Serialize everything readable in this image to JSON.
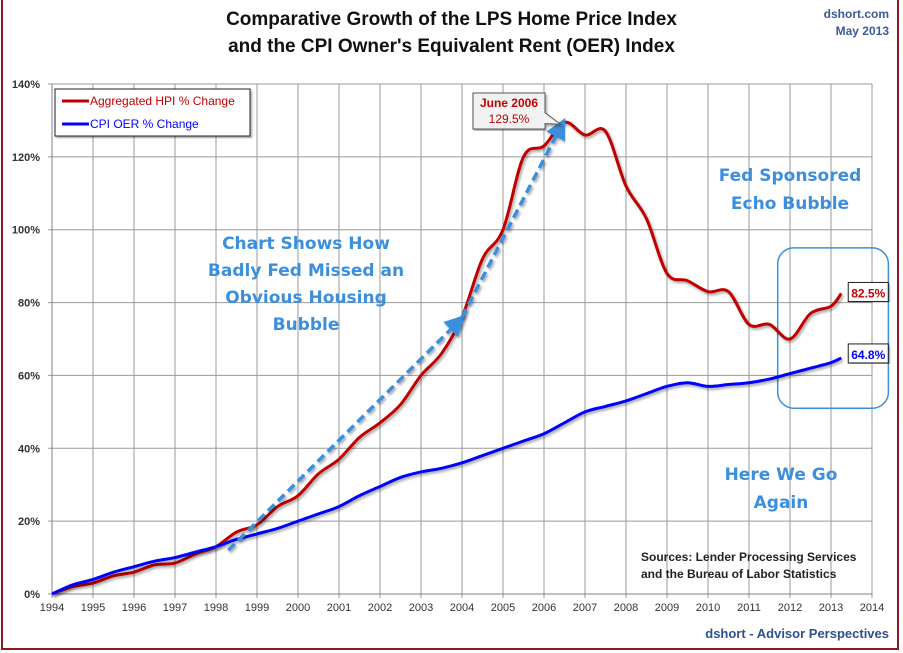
{
  "chart_data": {
    "type": "line",
    "title": "Comparative Growth of the LPS Home Price Index",
    "subtitle": "and the CPI Owner's Equivalent Rent (OER) Index",
    "credit": [
      "dshort.com",
      "May 2013"
    ],
    "footer": "dshort - Advisor Perspectives",
    "xlabel": "",
    "ylabel": "",
    "xlim": [
      1994,
      2014
    ],
    "ylim": [
      0,
      140
    ],
    "x_ticks": [
      "1994",
      "1995",
      "1996",
      "1997",
      "1998",
      "1999",
      "2000",
      "2001",
      "2002",
      "2003",
      "2004",
      "2005",
      "2006",
      "2007",
      "2008",
      "2009",
      "2010",
      "2011",
      "2012",
      "2013",
      "2014"
    ],
    "y_ticks": [
      "0%",
      "20%",
      "40%",
      "60%",
      "80%",
      "100%",
      "120%",
      "140%"
    ],
    "y_tick_values": [
      0,
      20,
      40,
      60,
      80,
      100,
      120,
      140
    ],
    "grid": true,
    "legend_position": "top-left",
    "series": [
      {
        "name": "Aggregated HPI % Change",
        "color": "#c00000",
        "x": [
          1994,
          1994.5,
          1995,
          1995.5,
          1996,
          1996.5,
          1997,
          1997.5,
          1998,
          1998.5,
          1999,
          1999.5,
          2000,
          2000.5,
          2001,
          2001.5,
          2002,
          2002.5,
          2003,
          2003.5,
          2004,
          2004.5,
          2005,
          2005.5,
          2006,
          2006.5,
          2007,
          2007.5,
          2008,
          2008.5,
          2009,
          2009.5,
          2010,
          2010.5,
          2011,
          2011.5,
          2012,
          2012.5,
          2013,
          2013.25
        ],
        "values": [
          0,
          2,
          3,
          5,
          6,
          8,
          8.5,
          11,
          13,
          17,
          19,
          24,
          27,
          33,
          37,
          43,
          47,
          52,
          60,
          66,
          76,
          92,
          100,
          120,
          123,
          129.5,
          126,
          127,
          112,
          103,
          88,
          86,
          83,
          83,
          74,
          74,
          70,
          77,
          79,
          82.5
        ]
      },
      {
        "name": "CPI OER % Change",
        "color": "#0000ff",
        "x": [
          1994,
          1994.5,
          1995,
          1995.5,
          1996,
          1996.5,
          1997,
          1997.5,
          1998,
          1998.5,
          1999,
          1999.5,
          2000,
          2000.5,
          2001,
          2001.5,
          2002,
          2002.5,
          2003,
          2003.5,
          2004,
          2004.5,
          2005,
          2005.5,
          2006,
          2006.5,
          2007,
          2007.5,
          2008,
          2008.5,
          2009,
          2009.5,
          2010,
          2010.5,
          2011,
          2011.5,
          2012,
          2012.5,
          2013,
          2013.25
        ],
        "values": [
          0,
          2.5,
          4,
          6,
          7.5,
          9,
          10,
          11.5,
          13,
          15,
          16.5,
          18,
          20,
          22,
          24,
          27,
          29.5,
          32,
          33.5,
          34.5,
          36,
          38,
          40,
          42,
          44,
          47,
          50,
          51.5,
          53,
          55,
          57,
          58,
          57,
          57.5,
          58,
          59,
          60.5,
          62,
          63.5,
          64.8
        ]
      }
    ],
    "annotations": {
      "peak_callout": {
        "label": "June 2006",
        "value": "129.5%",
        "x": 2006.5,
        "y": 129.5
      },
      "hpi_end_label": "82.5%",
      "oer_end_label": "64.8%",
      "bubble_text": [
        "Chart Shows How",
        "Badly Fed Missed an",
        "Obvious Housing",
        "Bubble"
      ],
      "echo_text": [
        "Fed Sponsored",
        "Echo Bubble"
      ],
      "again_text": [
        "Here We Go",
        "Again"
      ],
      "sources": [
        "Sources: Lender Processing Services",
        "and the Bureau of Labor Statistics"
      ],
      "trend_arrow_1": {
        "from": [
          1998.3,
          12
        ],
        "to": [
          2004,
          76
        ]
      },
      "trend_arrow_2": {
        "from": [
          2004,
          76
        ],
        "to": [
          2006.5,
          129.5
        ]
      },
      "highlight_box": {
        "x_range": [
          2011.7,
          2014.4
        ],
        "y_range": [
          51,
          95
        ]
      }
    }
  }
}
